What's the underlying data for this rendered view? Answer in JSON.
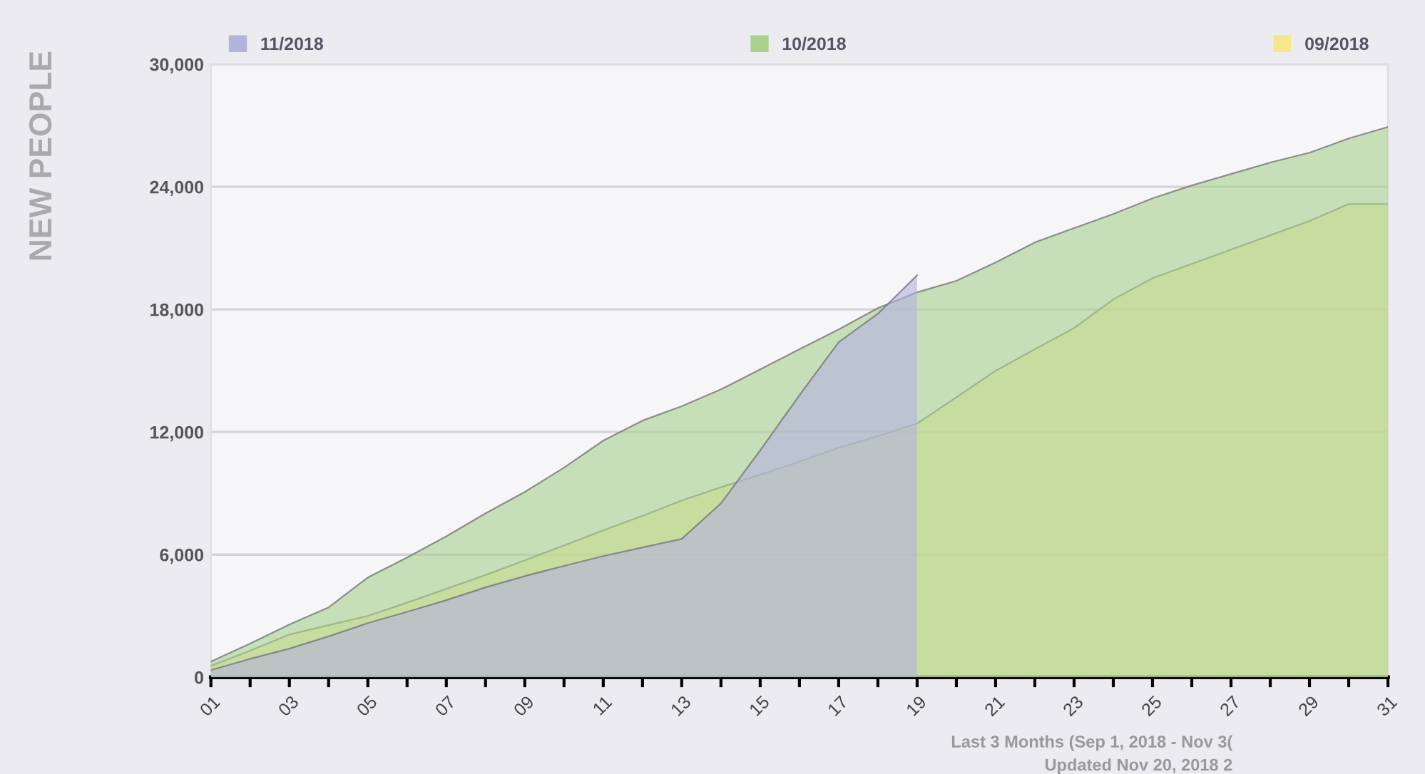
{
  "chart_data": {
    "type": "area",
    "ylabel": "NEW PEOPLE",
    "categories": [
      "01",
      null,
      "03",
      null,
      "05",
      null,
      "07",
      null,
      "09",
      null,
      "11",
      null,
      "13",
      null,
      "15",
      null,
      "17",
      null,
      "19",
      null,
      "21",
      null,
      "23",
      null,
      "25",
      null,
      "27",
      null,
      "29",
      null,
      "31"
    ],
    "series": [
      {
        "name": "11/2018",
        "color": "#b3b3e0",
        "values": [
          350,
          900,
          1400,
          2000,
          2650,
          3200,
          3770,
          4400,
          4950,
          5450,
          5930,
          6350,
          6770,
          8510,
          11100,
          13800,
          16400,
          17790,
          19670,
          null,
          null,
          null,
          null,
          null,
          null,
          null,
          null,
          null,
          null,
          null,
          null
        ]
      },
      {
        "name": "10/2018",
        "color": "#a9d18e",
        "values": [
          770,
          1650,
          2580,
          3420,
          4880,
          5860,
          6900,
          8020,
          9070,
          10260,
          11580,
          12560,
          13260,
          14090,
          15070,
          16050,
          17020,
          18070,
          18840,
          19400,
          20300,
          21280,
          21980,
          22670,
          23440,
          24070,
          24630,
          25190,
          25670,
          26370,
          26930
        ]
      },
      {
        "name": "09/2018",
        "color": "#f5e88c",
        "values": [
          560,
          1300,
          2090,
          2550,
          3000,
          3650,
          4330,
          5000,
          5720,
          6450,
          7190,
          7900,
          8650,
          9300,
          9910,
          10550,
          11230,
          11800,
          12420,
          13700,
          15000,
          16050,
          17090,
          18490,
          19530,
          20230,
          20930,
          21630,
          22330,
          23160,
          23160
        ]
      }
    ],
    "ylim": [
      0,
      30000
    ],
    "yticks": [
      {
        "value": 0,
        "label": "0"
      },
      {
        "value": 6000,
        "label": "6,000"
      },
      {
        "value": 12000,
        "label": "12,000"
      },
      {
        "value": 18000,
        "label": "18,000"
      },
      {
        "value": 24000,
        "label": "24,000"
      },
      {
        "value": 30000,
        "label": "30,000"
      }
    ],
    "grid": "y",
    "legend": "top",
    "annotations": [
      "Last 3 Months (Sep 1, 2018 - Nov 3(",
      "Updated Nov 20, 2018 2"
    ]
  }
}
